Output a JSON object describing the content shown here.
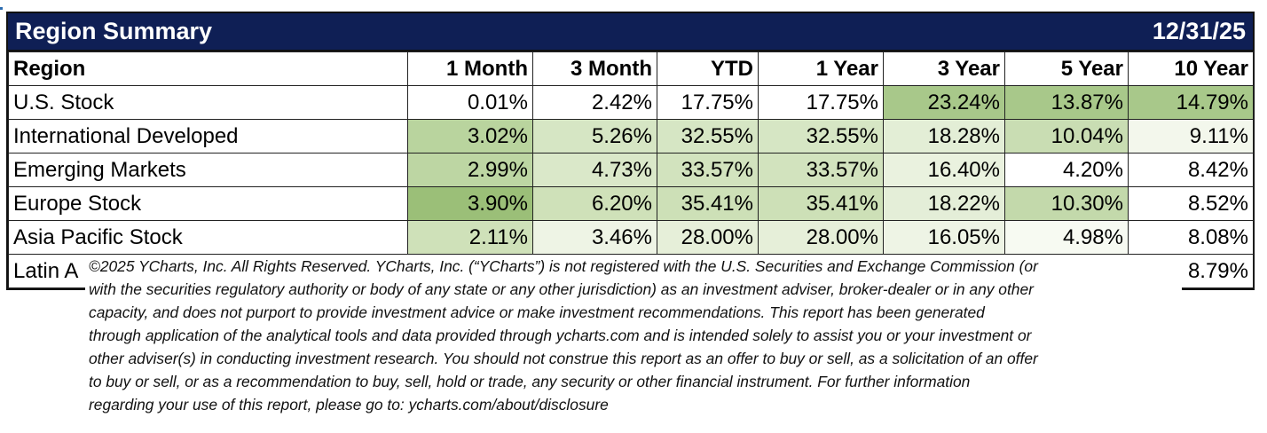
{
  "title": "Region Summary",
  "date": "12/31/25",
  "columns": [
    "Region",
    "1 Month",
    "3 Month",
    "YTD",
    "1 Year",
    "3 Year",
    "5 Year",
    "10 Year"
  ],
  "rows": [
    {
      "label": "U.S. Stock",
      "values": [
        "0.01%",
        "2.42%",
        "17.75%",
        "17.75%",
        "23.24%",
        "13.87%",
        "14.79%"
      ],
      "colors": [
        "#ffffff",
        "#ffffff",
        "#ffffff",
        "#ffffff",
        "#a8c88a",
        "#a8c88a",
        "#a8c88a"
      ]
    },
    {
      "label": "International Developed",
      "values": [
        "3.02%",
        "5.26%",
        "32.55%",
        "32.55%",
        "18.28%",
        "10.04%",
        "9.11%"
      ],
      "colors": [
        "#b9d49e",
        "#d6e6c4",
        "#d6e6c4",
        "#d6e6c4",
        "#e3eed6",
        "#c9ddb3",
        "#f3f7ec"
      ]
    },
    {
      "label": "Emerging Markets",
      "values": [
        "2.99%",
        "4.73%",
        "33.57%",
        "33.57%",
        "16.40%",
        "4.20%",
        "8.42%"
      ],
      "colors": [
        "#bdd6a3",
        "#dae8c9",
        "#d2e3be",
        "#d2e3be",
        "#eaf2df",
        "#ffffff",
        "#ffffff"
      ]
    },
    {
      "label": "Europe Stock",
      "values": [
        "3.90%",
        "6.20%",
        "35.41%",
        "35.41%",
        "18.22%",
        "10.30%",
        "8.52%"
      ],
      "colors": [
        "#9bbf78",
        "#cfe1b9",
        "#cde0b7",
        "#cde0b7",
        "#e4eed8",
        "#c3d9ab",
        "#ffffff"
      ]
    },
    {
      "label": "Asia Pacific Stock",
      "values": [
        "2.11%",
        "3.46%",
        "28.00%",
        "28.00%",
        "16.05%",
        "4.98%",
        "8.08%"
      ],
      "colors": [
        "#cfe1b9",
        "#eef4e5",
        "#e6efd9",
        "#e6efd9",
        "#eef4e5",
        "#f7faf2",
        "#ffffff"
      ]
    },
    {
      "label": "Latin A",
      "values": [
        "",
        "",
        "",
        "",
        "",
        "",
        "8.79%"
      ],
      "colors": [
        "#ffffff",
        "#ffffff",
        "#ffffff",
        "#ffffff",
        "#ffffff",
        "#ffffff",
        "#ffffff"
      ]
    }
  ],
  "disclaimer_lines": [
    "©2025 YCharts, Inc. All Rights Reserved. YCharts, Inc. (“YCharts”) is not registered with the U.S. Securities and Exchange Commission (or",
    "with the securities regulatory authority or body of any state or any other jurisdiction) as an investment adviser, broker-dealer or in any other",
    "capacity, and does not purport to provide investment advice or make investment recommendations. This report has been generated",
    "through application of the analytical tools and data provided through ycharts.com and is intended solely to assist you or your investment or",
    "other adviser(s) in conducting investment research. You should not construe this report as an offer to buy or sell, as a solicitation of an offer",
    "to buy or sell, or as a recommendation to buy, sell, hold or trade, any security or other financial instrument. For further information",
    "regarding your use of this report, please go to: ycharts.com/about/disclosure"
  ],
  "colors": {
    "title_bg": "#0f1f55",
    "title_fg": "#ffffff"
  }
}
